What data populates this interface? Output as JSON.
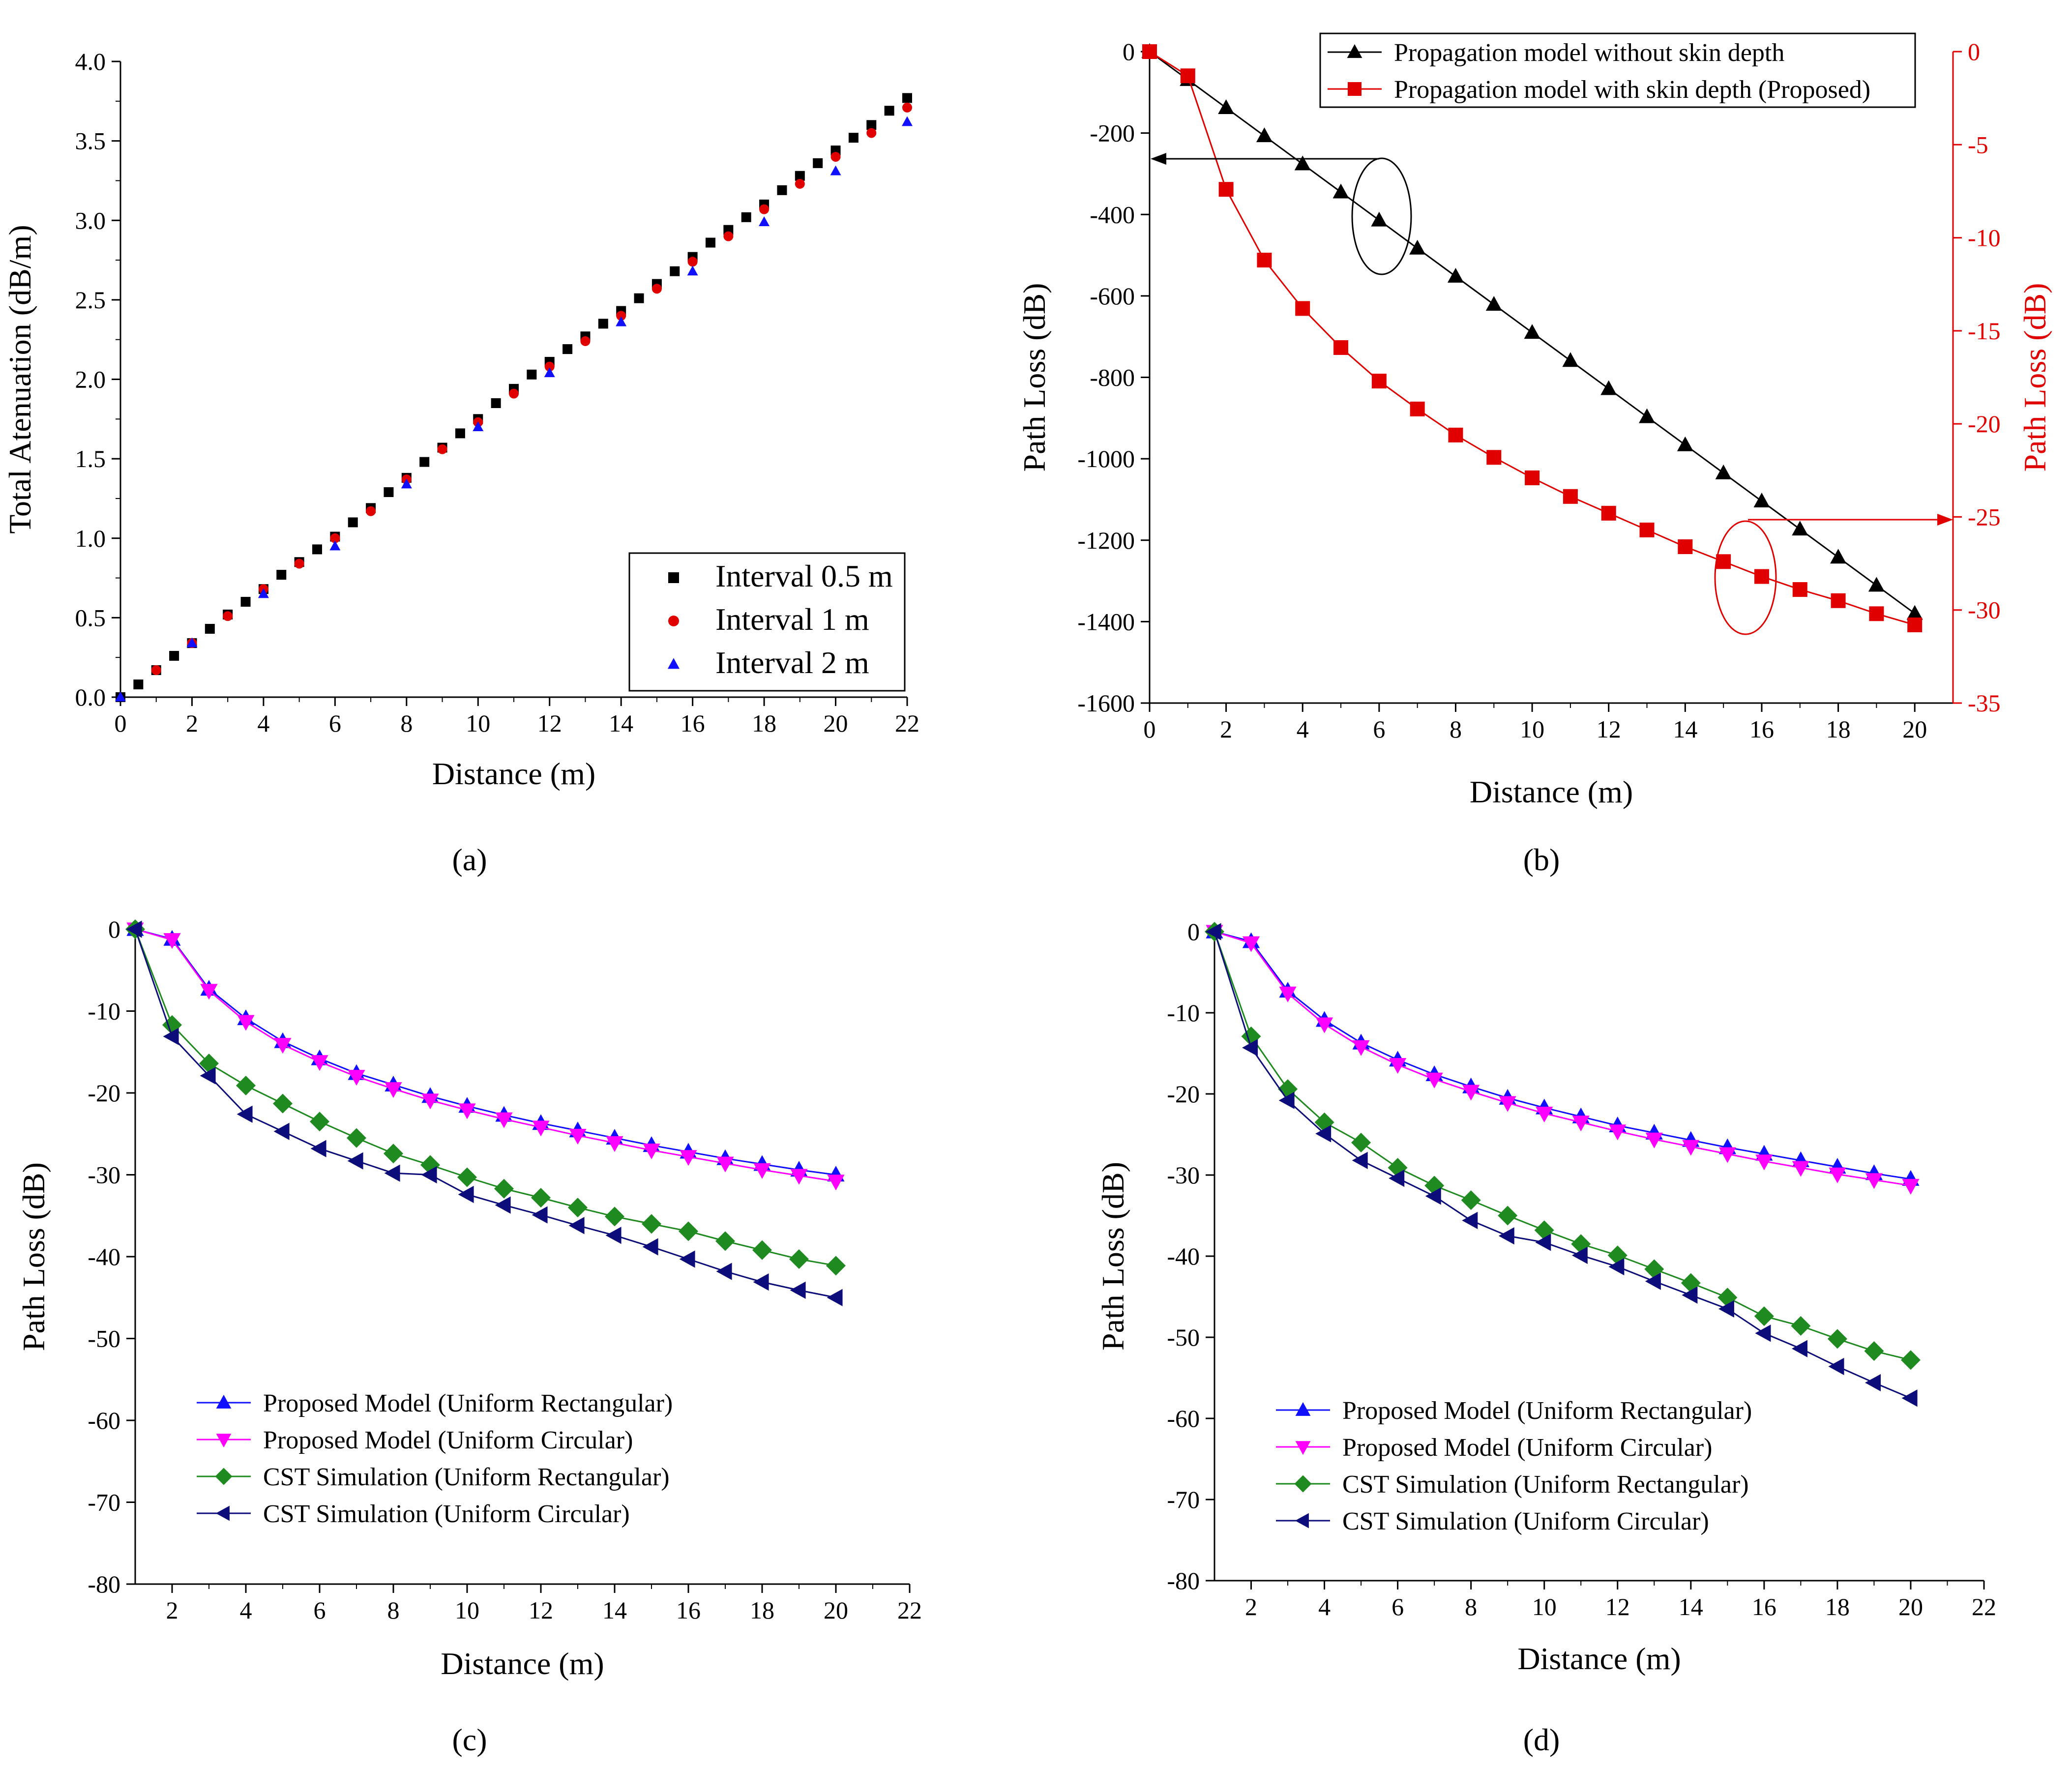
{
  "colors": {
    "black": "#000000",
    "red": "#e00000",
    "blue": "#1010ff",
    "magenta": "#ff00ff",
    "green": "#1f8a1f",
    "navy": "#0c0c7a"
  },
  "captions": {
    "a": "(a)",
    "b": "(b)",
    "c": "(c)",
    "d": "(d)"
  },
  "chart_data": [
    {
      "id": "a",
      "type": "scatter",
      "xlabel": "Distance (m)",
      "ylabel": "Total Atenuation (dB/m)",
      "xlim": [
        0,
        22
      ],
      "ylim": [
        0,
        4
      ],
      "xticks": [
        "0",
        "2",
        "4",
        "6",
        "8",
        "10",
        "12",
        "14",
        "16",
        "18",
        "20",
        "22"
      ],
      "yticks": [
        "0.0",
        "0.5",
        "1.0",
        "1.5",
        "2.0",
        "2.5",
        "3.0",
        "3.5",
        "4.0"
      ],
      "legend": "bottom-right",
      "series": [
        {
          "name": "Interval 0.5 m",
          "marker": "square",
          "color": "#000000",
          "x": [
            0,
            0.5,
            1,
            1.5,
            2,
            2.5,
            3,
            3.5,
            4,
            4.5,
            5,
            5.5,
            6,
            6.5,
            7,
            7.5,
            8,
            8.5,
            9,
            9.5,
            10,
            10.5,
            11,
            11.5,
            12,
            12.5,
            13,
            13.5,
            14,
            14.5,
            15,
            15.5,
            16,
            16.5,
            17,
            17.5,
            18,
            18.5,
            19,
            19.5,
            20,
            20.5,
            21,
            21.5,
            22
          ],
          "y": [
            0,
            0.08,
            0.17,
            0.26,
            0.34,
            0.43,
            0.52,
            0.6,
            0.68,
            0.77,
            0.85,
            0.93,
            1.01,
            1.1,
            1.19,
            1.29,
            1.38,
            1.48,
            1.57,
            1.66,
            1.75,
            1.85,
            1.94,
            2.03,
            2.11,
            2.19,
            2.27,
            2.35,
            2.43,
            2.51,
            2.6,
            2.68,
            2.77,
            2.86,
            2.94,
            3.02,
            3.1,
            3.19,
            3.28,
            3.36,
            3.44,
            3.52,
            3.6,
            3.69,
            3.77
          ]
        },
        {
          "name": "Interval 1 m",
          "marker": "circle",
          "color": "#e00000",
          "x": [
            1,
            2,
            3,
            4,
            5,
            6,
            7,
            8,
            9,
            10,
            11,
            12,
            13,
            14,
            15,
            16,
            17,
            18,
            19,
            20,
            21,
            22
          ],
          "y": [
            0.17,
            0.34,
            0.51,
            0.68,
            0.84,
            1.0,
            1.17,
            1.37,
            1.56,
            1.73,
            1.91,
            2.08,
            2.24,
            2.4,
            2.57,
            2.74,
            2.9,
            3.07,
            3.23,
            3.4,
            3.55,
            3.71
          ]
        },
        {
          "name": "Interval 2 m",
          "marker": "triangle",
          "color": "#1010ff",
          "x": [
            0,
            2,
            4,
            6,
            8,
            10,
            12,
            14,
            16,
            18,
            20,
            22
          ],
          "y": [
            0,
            0.34,
            0.65,
            0.95,
            1.34,
            1.7,
            2.04,
            2.36,
            2.68,
            2.99,
            3.31,
            3.62
          ]
        }
      ]
    },
    {
      "id": "b",
      "type": "line",
      "xlabel": "Distance (m)",
      "ylabel": "Path Loss (dB)",
      "y2label": "Path Loss (dB)",
      "xlim": [
        0,
        21
      ],
      "ylim": [
        -1600,
        0
      ],
      "y2lim": [
        -35,
        0
      ],
      "xticks": [
        "0",
        "2",
        "4",
        "6",
        "8",
        "10",
        "12",
        "14",
        "16",
        "18",
        "20"
      ],
      "yticks": [
        "0",
        "-200",
        "-400",
        "-600",
        "-800",
        "-1000",
        "-1200",
        "-1400",
        "-1600"
      ],
      "y2ticks": [
        "0",
        "-5",
        "-10",
        "-15",
        "-20",
        "-25",
        "-30",
        "-35"
      ],
      "legend": "top-right",
      "series": [
        {
          "name": "Propagation model without skin depth",
          "axis": "left",
          "marker": "triangle",
          "color": "#000000",
          "x": [
            0,
            1,
            2,
            3,
            4,
            5,
            6,
            7,
            8,
            9,
            10,
            11,
            12,
            13,
            14,
            15,
            16,
            17,
            18,
            19,
            20
          ],
          "y": [
            0,
            -69,
            -138,
            -207,
            -276,
            -345,
            -414,
            -483,
            -552,
            -621,
            -690,
            -759,
            -828,
            -897,
            -966,
            -1035,
            -1104,
            -1173,
            -1242,
            -1311,
            -1380
          ]
        },
        {
          "name": "Propagation model with skin depth (Proposed)",
          "axis": "right",
          "marker": "square",
          "color": "#e00000",
          "x": [
            0,
            1,
            2,
            3,
            4,
            5,
            6,
            7,
            8,
            9,
            10,
            11,
            12,
            13,
            14,
            15,
            16,
            17,
            18,
            19,
            20
          ],
          "y": [
            0,
            -1.3,
            -7.4,
            -11.2,
            -13.8,
            -15.9,
            -17.7,
            -19.2,
            -20.6,
            -21.8,
            -22.9,
            -23.9,
            -24.8,
            -25.7,
            -26.6,
            -27.4,
            -28.2,
            -28.9,
            -29.5,
            -30.2,
            -30.8
          ]
        }
      ]
    },
    {
      "id": "c",
      "type": "line",
      "xlabel": "Distance (m)",
      "ylabel": "Path Loss (dB)",
      "xlim": [
        1,
        22
      ],
      "ylim": [
        -80,
        0
      ],
      "xticks": [
        "2",
        "4",
        "6",
        "8",
        "10",
        "12",
        "14",
        "16",
        "18",
        "20",
        "22"
      ],
      "yticks": [
        "0",
        "-10",
        "-20",
        "-30",
        "-40",
        "-50",
        "-60",
        "-70",
        "-80"
      ],
      "legend": "bottom-left",
      "series": [
        {
          "name": "Proposed Model (Uniform Rectangular)",
          "marker": "triangle-up",
          "color": "#1010ff",
          "x": [
            1,
            2,
            3,
            4,
            5,
            6,
            7,
            8,
            9,
            10,
            11,
            12,
            13,
            14,
            15,
            16,
            17,
            18,
            19,
            20
          ],
          "y": [
            0,
            -1.2,
            -7.3,
            -10.9,
            -13.7,
            -15.8,
            -17.6,
            -19.0,
            -20.4,
            -21.6,
            -22.7,
            -23.7,
            -24.6,
            -25.5,
            -26.4,
            -27.2,
            -28.0,
            -28.7,
            -29.4,
            -30.0
          ]
        },
        {
          "name": "Proposed Model (Uniform Circular)",
          "marker": "triangle-down",
          "color": "#ff00ff",
          "x": [
            1,
            2,
            3,
            4,
            5,
            6,
            7,
            8,
            9,
            10,
            11,
            12,
            13,
            14,
            15,
            16,
            17,
            18,
            19,
            20
          ],
          "y": [
            0,
            -1.3,
            -7.5,
            -11.3,
            -14.1,
            -16.2,
            -18.0,
            -19.5,
            -20.9,
            -22.1,
            -23.2,
            -24.2,
            -25.2,
            -26.1,
            -27.0,
            -27.8,
            -28.6,
            -29.4,
            -30.1,
            -30.8
          ]
        },
        {
          "name": "CST Simulation (Uniform Rectangular)",
          "marker": "diamond",
          "color": "#1f8a1f",
          "x": [
            1,
            2,
            3,
            4,
            5,
            6,
            7,
            8,
            9,
            10,
            11,
            12,
            13,
            14,
            15,
            16,
            17,
            18,
            19,
            20
          ],
          "y": [
            0,
            -11.7,
            -16.4,
            -19.1,
            -21.3,
            -23.5,
            -25.5,
            -27.4,
            -28.8,
            -30.3,
            -31.7,
            -32.8,
            -34.0,
            -35.1,
            -36.0,
            -36.9,
            -38.1,
            -39.2,
            -40.3,
            -41.1
          ]
        },
        {
          "name": "CST Simulation (Uniform Circular)",
          "marker": "triangle-left",
          "color": "#0c0c7a",
          "x": [
            1,
            2,
            3,
            4,
            5,
            6,
            7,
            8,
            9,
            10,
            11,
            12,
            13,
            14,
            15,
            16,
            17,
            18,
            19,
            20
          ],
          "y": [
            0,
            -13.1,
            -17.9,
            -22.6,
            -24.7,
            -26.8,
            -28.3,
            -29.8,
            -30.0,
            -32.4,
            -33.7,
            -34.9,
            -36.2,
            -37.4,
            -38.8,
            -40.3,
            -41.8,
            -43.1,
            -44.1,
            -45.0
          ]
        }
      ]
    },
    {
      "id": "d",
      "type": "line",
      "xlabel": "Distance (m)",
      "ylabel": "Path Loss (dB)",
      "xlim": [
        1,
        22
      ],
      "ylim": [
        -80,
        0
      ],
      "xticks": [
        "2",
        "4",
        "6",
        "8",
        "10",
        "12",
        "14",
        "16",
        "18",
        "20",
        "22"
      ],
      "yticks": [
        "0",
        "-10",
        "-20",
        "-30",
        "-40",
        "-50",
        "-60",
        "-70",
        "-80"
      ],
      "legend": "bottom-left",
      "series": [
        {
          "name": "Proposed Model (Uniform Rectangular)",
          "marker": "triangle-up",
          "color": "#1010ff",
          "x": [
            1,
            2,
            3,
            4,
            5,
            6,
            7,
            8,
            9,
            10,
            11,
            12,
            13,
            14,
            15,
            16,
            17,
            18,
            19,
            20
          ],
          "y": [
            0,
            -1.2,
            -7.3,
            -10.9,
            -13.7,
            -15.8,
            -17.6,
            -19.1,
            -20.5,
            -21.7,
            -22.8,
            -23.9,
            -24.8,
            -25.7,
            -26.6,
            -27.4,
            -28.2,
            -29.0,
            -29.8,
            -30.5
          ]
        },
        {
          "name": "Proposed Model (Uniform Circular)",
          "marker": "triangle-down",
          "color": "#ff00ff",
          "x": [
            1,
            2,
            3,
            4,
            5,
            6,
            7,
            8,
            9,
            10,
            11,
            12,
            13,
            14,
            15,
            16,
            17,
            18,
            19,
            20
          ],
          "y": [
            0,
            -1.4,
            -7.6,
            -11.4,
            -14.2,
            -16.4,
            -18.2,
            -19.7,
            -21.1,
            -22.4,
            -23.5,
            -24.6,
            -25.6,
            -26.5,
            -27.4,
            -28.3,
            -29.1,
            -29.9,
            -30.6,
            -31.3
          ]
        },
        {
          "name": "CST Simulation (Uniform Rectangular)",
          "marker": "diamond",
          "color": "#1f8a1f",
          "x": [
            1,
            2,
            3,
            4,
            5,
            6,
            7,
            8,
            9,
            10,
            11,
            12,
            13,
            14,
            15,
            16,
            17,
            18,
            19,
            20
          ],
          "y": [
            0,
            -12.9,
            -19.4,
            -23.5,
            -26.0,
            -29.1,
            -31.3,
            -33.1,
            -35.0,
            -36.8,
            -38.5,
            -39.9,
            -41.6,
            -43.3,
            -45.1,
            -47.4,
            -48.6,
            -50.2,
            -51.7,
            -52.8
          ]
        },
        {
          "name": "CST Simulation (Uniform Circular)",
          "marker": "triangle-left",
          "color": "#0c0c7a",
          "x": [
            1,
            2,
            3,
            4,
            5,
            6,
            7,
            8,
            9,
            10,
            11,
            12,
            13,
            14,
            15,
            16,
            17,
            18,
            19,
            20
          ],
          "y": [
            0,
            -14.3,
            -20.8,
            -24.9,
            -28.2,
            -30.4,
            -32.6,
            -35.6,
            -37.5,
            -38.3,
            -39.9,
            -41.3,
            -43.1,
            -44.8,
            -46.5,
            -49.5,
            -51.4,
            -53.6,
            -55.6,
            -57.5
          ]
        }
      ]
    }
  ]
}
